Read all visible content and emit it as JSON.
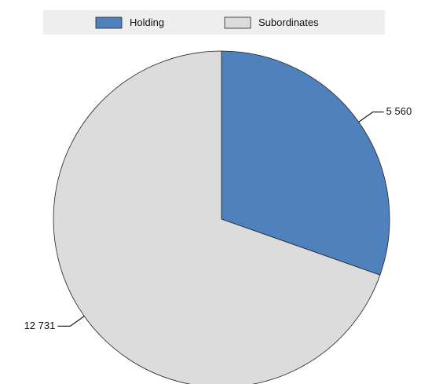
{
  "chart_data": {
    "type": "pie",
    "categories": [
      "Holding",
      "Subordinates"
    ],
    "values": [
      5560,
      12731
    ],
    "value_labels": [
      "5 560",
      "12 731"
    ],
    "colors": [
      "#4f81bd",
      "#dcdcdc"
    ],
    "legend": "top"
  }
}
